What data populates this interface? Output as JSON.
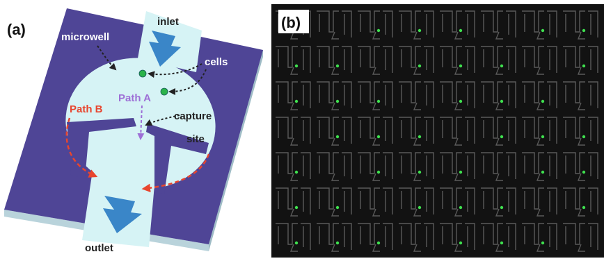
{
  "panel_a": {
    "label": "(a)",
    "microwell": "microwell",
    "inlet": "inlet",
    "cells": "cells",
    "path_a": "Path A",
    "path_b": "Path B",
    "capture_site": [
      "capture",
      "site"
    ],
    "outlet": "outlet"
  },
  "panel_b": {
    "label": "(b)"
  }
}
